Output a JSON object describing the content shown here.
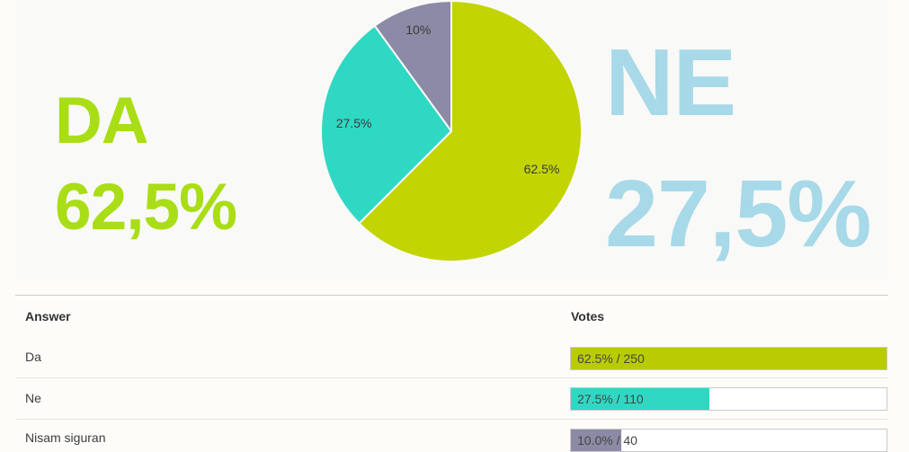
{
  "highlights": {
    "left": {
      "label": "DA",
      "value": "62,5%",
      "color": "#a9dd15"
    },
    "right": {
      "label": "NE",
      "value": "27,5%",
      "color": "#a7d9e9"
    }
  },
  "chart_data": {
    "type": "pie",
    "title": "",
    "legend": "none",
    "start_angle_deg": 0,
    "direction": "clockwise",
    "slices": [
      {
        "label": "Da",
        "pct": 62.5,
        "display": "62.5%",
        "color": "#c2d402"
      },
      {
        "label": "Ne",
        "pct": 27.5,
        "display": "27.5%",
        "color": "#2fd8c3"
      },
      {
        "label": "Nisam siguran",
        "pct": 10.0,
        "display": "10%",
        "color": "#8c8aa6"
      }
    ]
  },
  "table": {
    "headers": {
      "answer": "Answer",
      "votes": "Votes"
    },
    "rows": [
      {
        "answer": "Da",
        "votes_display": "62.5% / 250",
        "pct": 62.5,
        "votes": 250,
        "color": "#b9cc02"
      },
      {
        "answer": "Ne",
        "votes_display": "27.5% / 110",
        "pct": 27.5,
        "votes": 110,
        "color": "#2fd8c3"
      },
      {
        "answer": "Nisam siguran",
        "votes_display": "10.0% / 40",
        "pct": 10.0,
        "votes": 40,
        "color": "#8d8aa5"
      }
    ]
  }
}
